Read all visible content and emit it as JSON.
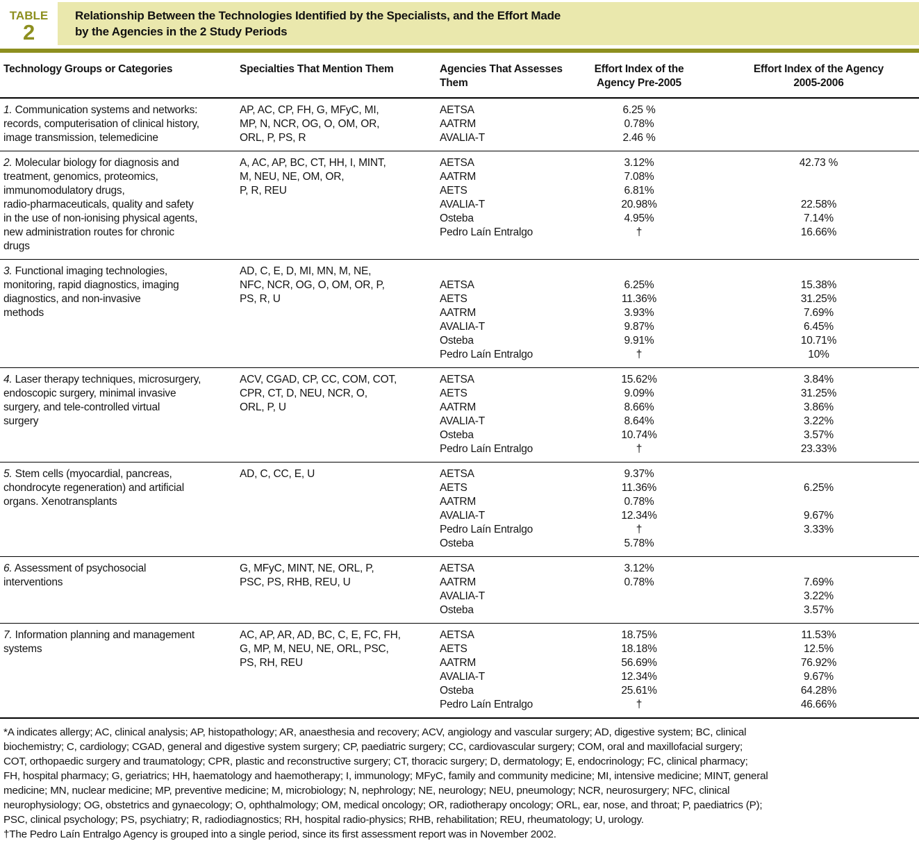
{
  "header": {
    "label": "TABLE",
    "number": "2",
    "title": "Relationship Between the Technologies Identified by the Specialists, and the Effort Made\nby the Agencies in the 2 Study Periods"
  },
  "colors": {
    "accent_olive": "#8d8f1f",
    "title_band_khaki": "#eae8ad",
    "text": "#141414"
  },
  "columns": [
    "Technology Groups or Categories",
    "Specialties That Mention Them",
    "Agencies That Assesses Them",
    "Effort Index of the\nAgency Pre-2005",
    "Effort Index of the Agency\n2005-2006"
  ],
  "rows": [
    {
      "number": "1.",
      "category": "Communication systems and networks:\nrecords, computerisation of clinical history,\nimage transmission, telemedicine",
      "specialties": "AP, AC, CP, FH, G, MFyC, MI,\nMP, N, NCR, OG, O, OM, OR,\nORL, P, PS, R",
      "agencies": [
        {
          "name": "AETSA",
          "pre2005": "6.25 %",
          "p0506": ""
        },
        {
          "name": "AATRM",
          "pre2005": "0.78%",
          "p0506": ""
        },
        {
          "name": "AVALIA-T",
          "pre2005": "2.46 %",
          "p0506": ""
        }
      ]
    },
    {
      "number": "2.",
      "category": "Molecular biology for diagnosis and\ntreatment, genomics, proteomics,\nimmunomodulatory drugs,\nradio-pharmaceuticals, quality and safety\nin the use of non-ionising physical agents,\nnew administration routes for chronic\ndrugs",
      "specialties": "A, AC, AP, BC, CT, HH, I, MINT,\nM, NEU, NE, OM, OR,\nP, R, REU",
      "agencies": [
        {
          "name": "AETSA",
          "pre2005": "3.12%",
          "p0506": "42.73 %"
        },
        {
          "name": "AATRM",
          "pre2005": "7.08%",
          "p0506": ""
        },
        {
          "name": "AETS",
          "pre2005": "6.81%",
          "p0506": ""
        },
        {
          "name": "AVALIA-T",
          "pre2005": "20.98%",
          "p0506": "22.58%"
        },
        {
          "name": "Osteba",
          "pre2005": "4.95%",
          "p0506": "7.14%"
        },
        {
          "name": "Pedro Laín Entralgo",
          "pre2005": "†",
          "p0506": "16.66%"
        }
      ]
    },
    {
      "number": "3.",
      "category": "Functional imaging technologies,\nmonitoring, rapid diagnostics, imaging\ndiagnostics, and non-invasive\nmethods",
      "specialties": "AD, C, E, D, MI, MN, M, NE,\nNFC, NCR, OG, O, OM, OR, P,\nPS, R, U",
      "agencies": [
        {
          "name": "AETSA",
          "pre2005": "6.25%",
          "p0506": "15.38%"
        },
        {
          "name": "AETS",
          "pre2005": "11.36%",
          "p0506": "31.25%"
        },
        {
          "name": "AATRM",
          "pre2005": "3.93%",
          "p0506": "7.69%"
        },
        {
          "name": "AVALIA-T",
          "pre2005": "9.87%",
          "p0506": "6.45%"
        },
        {
          "name": "Osteba",
          "pre2005": "9.91%",
          "p0506": "10.71%"
        },
        {
          "name": "Pedro Laín Entralgo",
          "pre2005": "†",
          "p0506": "10%"
        }
      ]
    },
    {
      "number": "4.",
      "category": "Laser therapy techniques, microsurgery,\nendoscopic surgery, minimal invasive\nsurgery, and tele-controlled virtual\nsurgery",
      "specialties": "ACV, CGAD, CP, CC, COM, COT,\nCPR, CT, D, NEU, NCR, O,\nORL, P, U",
      "agencies": [
        {
          "name": "AETSA",
          "pre2005": "15.62%",
          "p0506": "3.84%"
        },
        {
          "name": "AETS",
          "pre2005": "9.09%",
          "p0506": "31.25%"
        },
        {
          "name": "AATRM",
          "pre2005": "8.66%",
          "p0506": "3.86%"
        },
        {
          "name": "AVALIA-T",
          "pre2005": "8.64%",
          "p0506": "3.22%"
        },
        {
          "name": "Osteba",
          "pre2005": "10.74%",
          "p0506": "3.57%"
        },
        {
          "name": "Pedro Laín Entralgo",
          "pre2005": "†",
          "p0506": "23.33%"
        }
      ]
    },
    {
      "number": "5.",
      "category": "Stem cells (myocardial, pancreas,\nchondrocyte regeneration) and artificial\norgans. Xenotransplants",
      "specialties": "AD, C, CC, E, U",
      "agencies": [
        {
          "name": "AETSA",
          "pre2005": "9.37%",
          "p0506": ""
        },
        {
          "name": "AETS",
          "pre2005": "11.36%",
          "p0506": "6.25%"
        },
        {
          "name": "AATRM",
          "pre2005": "0.78%",
          "p0506": ""
        },
        {
          "name": "AVALIA-T",
          "pre2005": "12.34%",
          "p0506": "9.67%"
        },
        {
          "name": "Pedro Laín Entralgo",
          "pre2005": "†",
          "p0506": "3.33%"
        },
        {
          "name": "Osteba",
          "pre2005": "5.78%",
          "p0506": ""
        }
      ]
    },
    {
      "number": "6.",
      "category": "Assessment of psychosocial\ninterventions",
      "specialties": "G, MFyC, MINT, NE, ORL, P,\nPSC, PS, RHB, REU, U",
      "agencies": [
        {
          "name": "AETSA",
          "pre2005": "3.12%",
          "p0506": ""
        },
        {
          "name": "AATRM",
          "pre2005": "0.78%",
          "p0506": "7.69%"
        },
        {
          "name": "AVALIA-T",
          "pre2005": "",
          "p0506": "3.22%"
        },
        {
          "name": "Osteba",
          "pre2005": "",
          "p0506": "3.57%"
        }
      ]
    },
    {
      "number": "7.",
      "category": "Information planning and management\nsystems",
      "specialties": "AC, AP, AR, AD, BC, C, E, FC, FH,\nG, MP, M, NEU, NE, ORL, PSC,\nPS, RH, REU",
      "agencies": [
        {
          "name": "AETSA",
          "pre2005": "18.75%",
          "p0506": "11.53%"
        },
        {
          "name": "AETS",
          "pre2005": "18.18%",
          "p0506": "12.5%"
        },
        {
          "name": "AATRM",
          "pre2005": "56.69%",
          "p0506": "76.92%"
        },
        {
          "name": "AVALIA-T",
          "pre2005": "12.34%",
          "p0506": "9.67%"
        },
        {
          "name": "Osteba",
          "pre2005": "25.61%",
          "p0506": "64.28%"
        },
        {
          "name": "Pedro Laín Entralgo",
          "pre2005": "†",
          "p0506": "46.66%"
        }
      ]
    }
  ],
  "footnotes": {
    "definitions": "*A indicates allergy; AC, clinical analysis; AP, histopathology; AR, anaesthesia and recovery; ACV, angiology and vascular surgery; AD, digestive system; BC, clinical\nbiochemistry; C, cardiology; CGAD, general and digestive system surgery; CP, paediatric surgery; CC, cardiovascular surgery; COM, oral and maxillofacial surgery;\nCOT, orthopaedic surgery and traumatology; CPR, plastic and reconstructive surgery; CT, thoracic surgery; D, dermatology; E, endocrinology; FC, clinical pharmacy;\nFH, hospital pharmacy; G, geriatrics; HH, haematology and haemotherapy; I, immunology; MFyC, family and community medicine; MI, intensive medicine; MINT, general\nmedicine; MN, nuclear medicine; MP, preventive medicine; M, microbiology; N, nephrology; NE, neurology; NEU, pneumology; NCR, neurosurgery; NFC, clinical\nneurophysiology; OG, obstetrics and gynaecology; O, ophthalmology; OM, medical oncology; OR, radiotherapy oncology; ORL, ear, nose, and throat; P, paediatrics (P);\nPSC, clinical psychology; PS, psychiatry; R, radiodiagnostics; RH, hospital radio-physics; RHB, rehabilitation; REU, rheumatology; U, urology.",
    "dagger": "†The Pedro Laín Entralgo Agency is grouped into a single period, since its first assessment report was in November 2002."
  }
}
